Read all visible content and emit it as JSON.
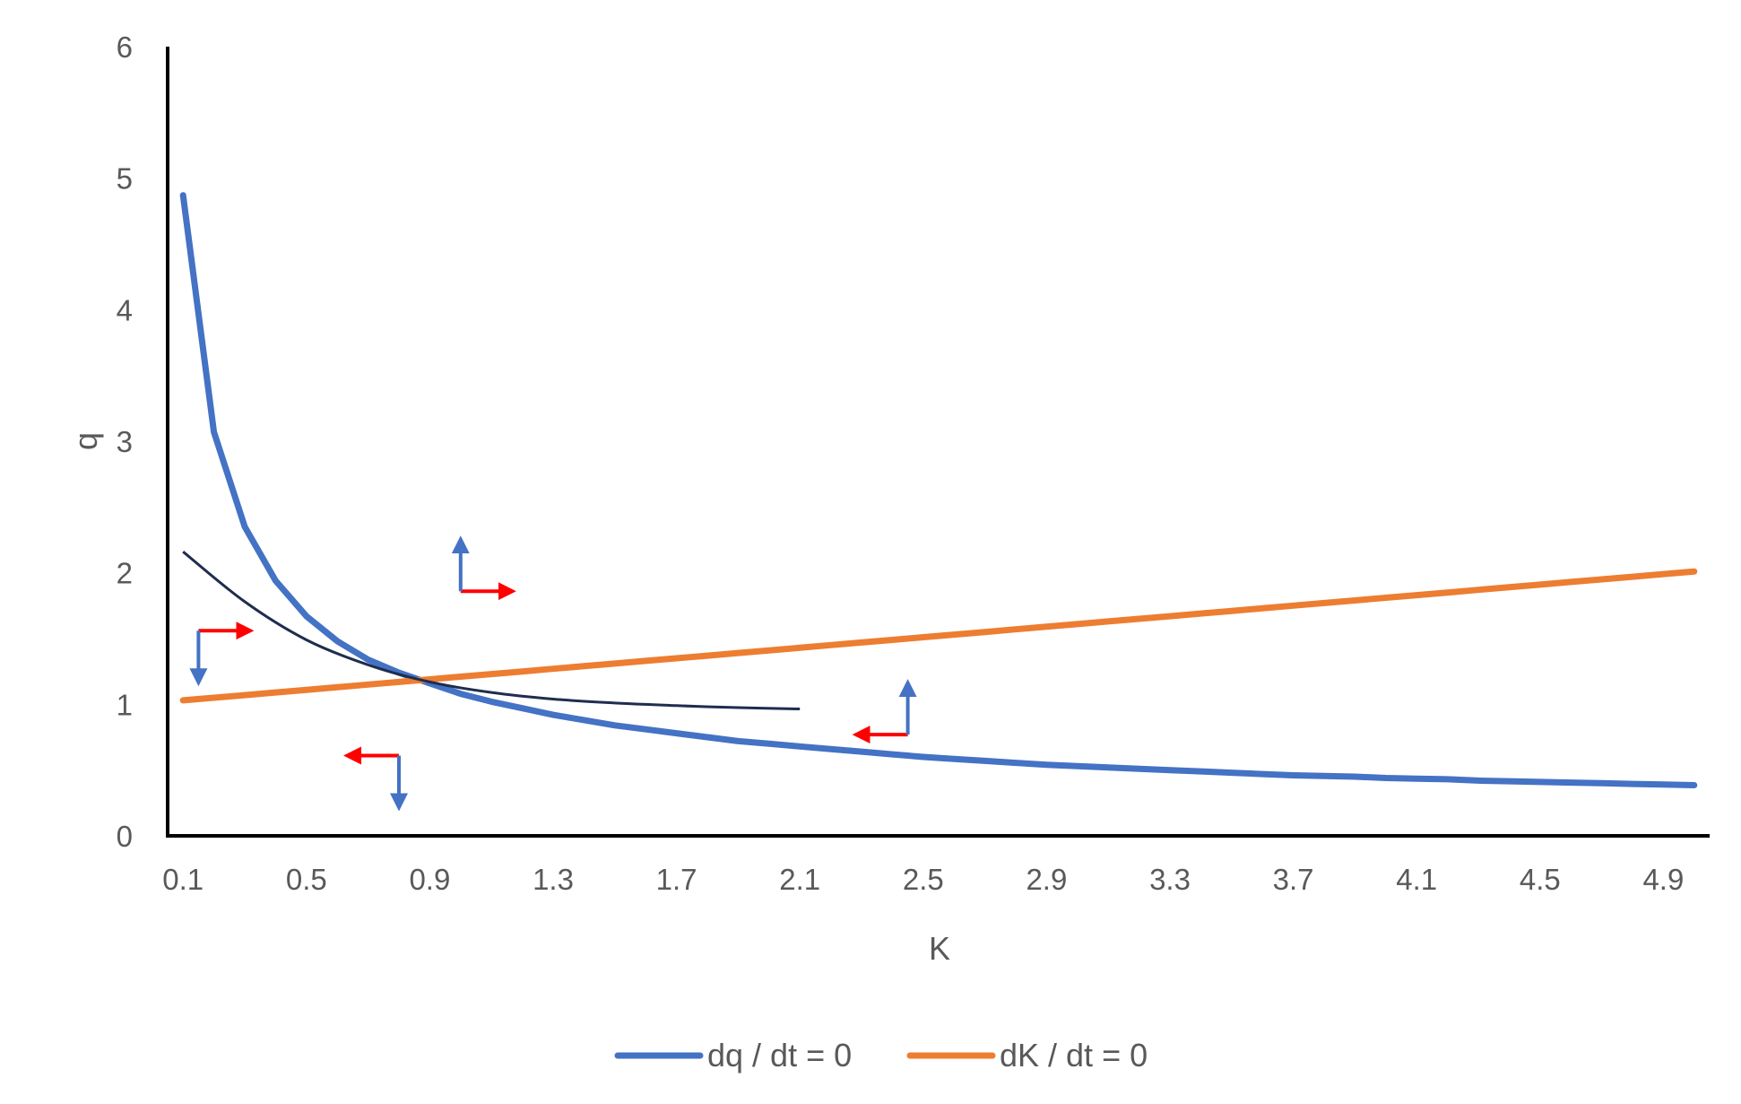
{
  "chart_data": {
    "type": "line",
    "xlabel": "K",
    "ylabel": "q",
    "ylim": [
      0,
      6
    ],
    "yticks": [
      "0",
      "1",
      "2",
      "3",
      "4",
      "5",
      "6"
    ],
    "categories": [
      "0.1",
      "0.2",
      "0.3",
      "0.4",
      "0.5",
      "0.6",
      "0.7",
      "0.8",
      "0.9",
      "1",
      "1.1",
      "1.2",
      "1.3",
      "1.4",
      "1.5",
      "1.6",
      "1.7",
      "1.8",
      "1.9",
      "2",
      "2.1",
      "2.2",
      "2.3",
      "2.4",
      "2.5",
      "2.6",
      "2.7",
      "2.8",
      "2.9",
      "3",
      "3.1",
      "3.2",
      "3.3",
      "3.4",
      "3.5",
      "3.6",
      "3.7",
      "3.8",
      "3.9",
      "4",
      "4.1",
      "4.2",
      "4.3",
      "4.4",
      "4.5",
      "4.6",
      "4.7",
      "4.8",
      "4.9",
      "5"
    ],
    "xtick_labels": [
      "0.1",
      "0.5",
      "0.9",
      "1.3",
      "1.7",
      "2.1",
      "2.5",
      "2.9",
      "3.3",
      "3.7",
      "4.1",
      "4.5",
      "4.9"
    ],
    "series": [
      {
        "name": "dq / dt = 0",
        "color": "#4472C4",
        "values": [
          4.87,
          3.07,
          2.35,
          1.94,
          1.67,
          1.48,
          1.34,
          1.24,
          1.16,
          1.08,
          1.02,
          0.97,
          0.92,
          0.88,
          0.84,
          0.81,
          0.78,
          0.75,
          0.72,
          0.7,
          0.68,
          0.66,
          0.64,
          0.62,
          0.6,
          0.585,
          0.57,
          0.555,
          0.54,
          0.53,
          0.52,
          0.51,
          0.5,
          0.49,
          0.48,
          0.47,
          0.46,
          0.455,
          0.45,
          0.44,
          0.435,
          0.43,
          0.42,
          0.415,
          0.41,
          0.405,
          0.4,
          0.395,
          0.39,
          0.385
        ]
      },
      {
        "name": "dK / dt = 0",
        "color": "#ED7D31",
        "values": [
          1.03,
          1.05,
          1.07,
          1.09,
          1.11,
          1.13,
          1.15,
          1.17,
          1.19,
          1.21,
          1.23,
          1.25,
          1.27,
          1.29,
          1.31,
          1.33,
          1.35,
          1.37,
          1.39,
          1.41,
          1.43,
          1.45,
          1.47,
          1.49,
          1.51,
          1.53,
          1.55,
          1.57,
          1.59,
          1.61,
          1.63,
          1.65,
          1.67,
          1.69,
          1.71,
          1.73,
          1.75,
          1.77,
          1.79,
          1.81,
          1.83,
          1.85,
          1.87,
          1.89,
          1.91,
          1.93,
          1.95,
          1.97,
          1.99,
          2.01
        ]
      }
    ],
    "saddle_path": {
      "color": "#1F2D4E",
      "x": [
        0.1,
        0.3,
        0.5,
        0.7,
        0.9,
        1.1,
        1.3,
        1.5,
        1.7,
        1.9,
        2.1
      ],
      "values": [
        2.16,
        1.78,
        1.49,
        1.3,
        1.17,
        1.09,
        1.04,
        1.01,
        0.99,
        0.975,
        0.965
      ]
    },
    "phase_arrows": [
      {
        "region": "upper-left",
        "x": 0.15,
        "y": 1.56,
        "horizontal": "right",
        "vertical": "down"
      },
      {
        "region": "upper-right",
        "x": 1.0,
        "y": 1.86,
        "horizontal": "right",
        "vertical": "up"
      },
      {
        "region": "lower-left",
        "x": 0.8,
        "y": 0.61,
        "horizontal": "left",
        "vertical": "down"
      },
      {
        "region": "lower-right",
        "x": 2.45,
        "y": 0.77,
        "horizontal": "left",
        "vertical": "up"
      }
    ],
    "arrow_colors": {
      "horizontal": "#FF0000",
      "vertical": "#4472C4"
    },
    "grid": false,
    "legend_position": "bottom"
  }
}
